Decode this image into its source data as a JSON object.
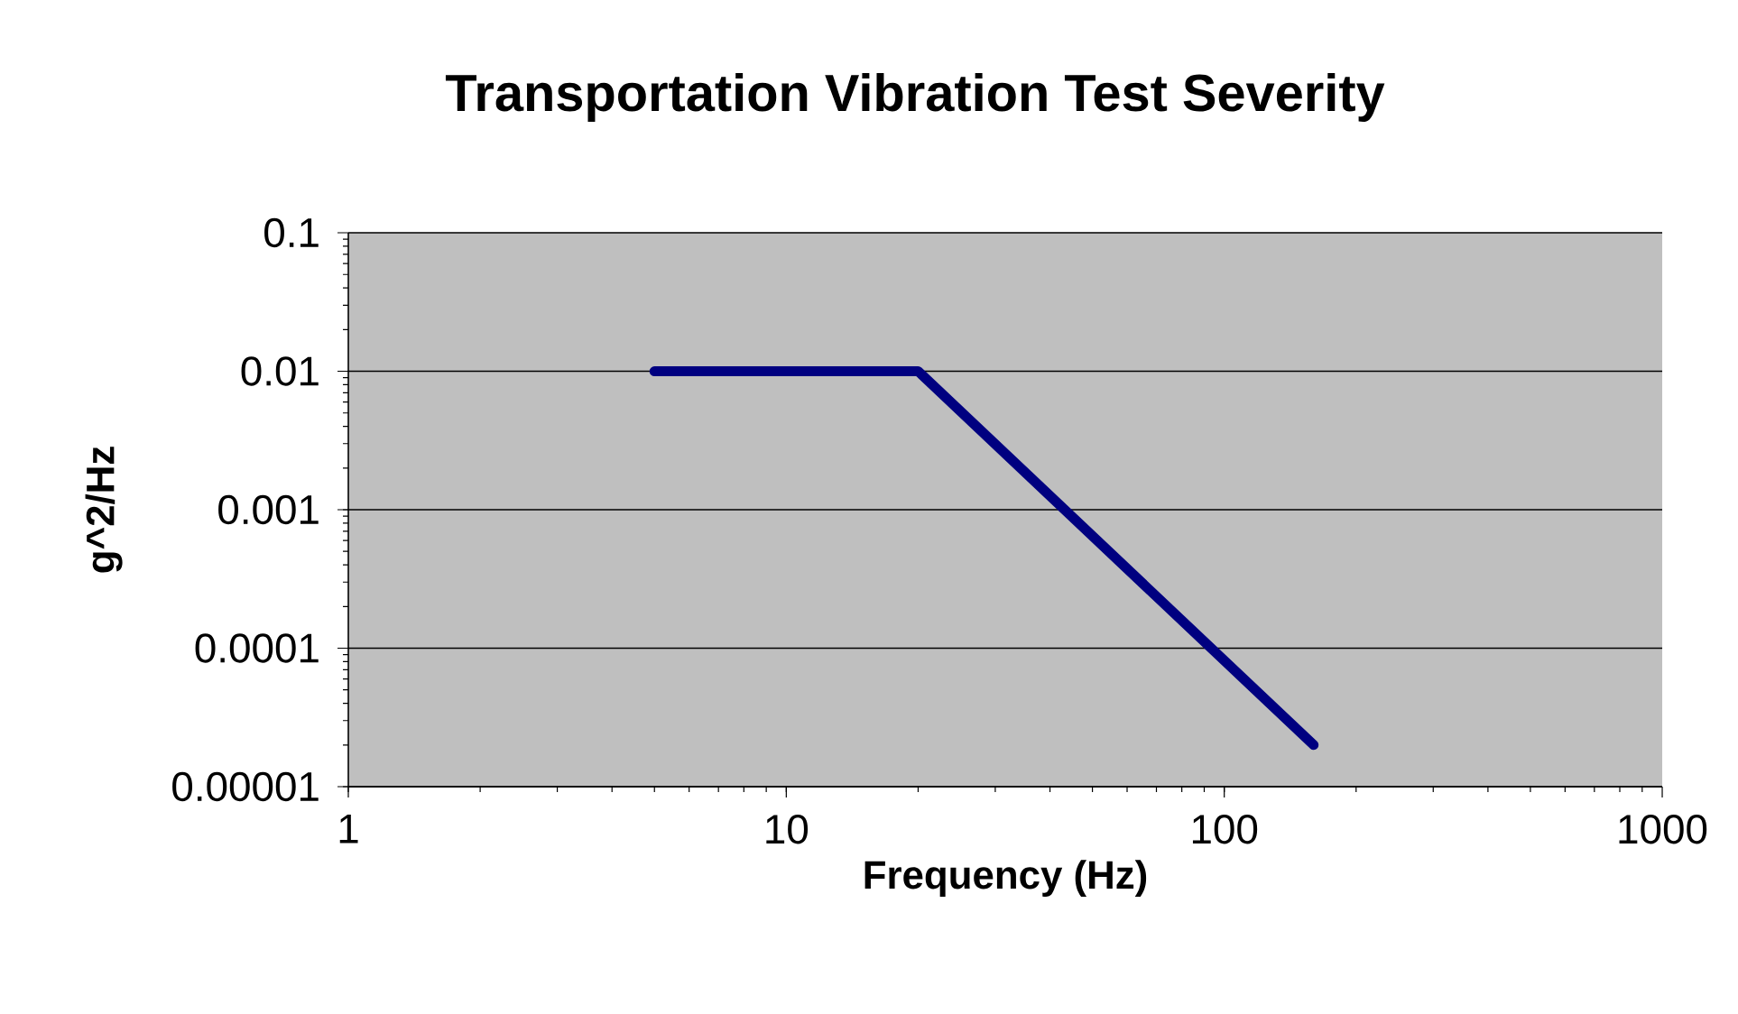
{
  "chart_data": {
    "type": "line",
    "title": "Transportation Vibration Test Severity",
    "xlabel": "Frequency (Hz)",
    "ylabel": "g^2/Hz",
    "log": "xy",
    "grid": "y",
    "xlim": [
      1,
      1000
    ],
    "ylim": [
      1e-05,
      0.1
    ],
    "xticks": [
      1,
      10,
      100,
      1000
    ],
    "yticks": [
      {
        "value": 1e-05,
        "label": "0.00001"
      },
      {
        "value": 0.0001,
        "label": "0.0001"
      },
      {
        "value": 0.001,
        "label": "0.001"
      },
      {
        "value": 0.01,
        "label": "0.01"
      },
      {
        "value": 0.1,
        "label": "0.1"
      }
    ],
    "series": [
      {
        "color": "#000080",
        "x": [
          5,
          20,
          160
        ],
        "values": [
          0.01,
          0.01,
          2e-05
        ]
      }
    ]
  }
}
